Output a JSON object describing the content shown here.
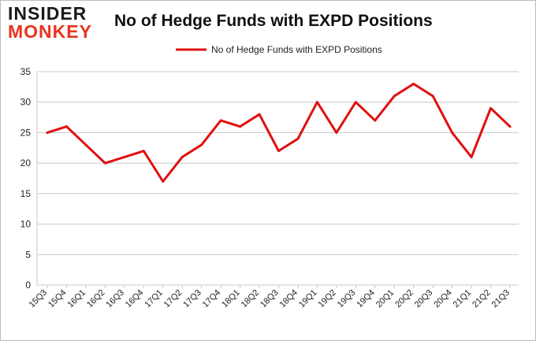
{
  "header": {
    "logo_line1": "INSIDER",
    "logo_line2": "MONKEY",
    "title": "No of Hedge Funds with EXPD Positions"
  },
  "colors": {
    "series": "#e01010",
    "grid": "#c8c8c8",
    "logo_red": "#e8341c"
  },
  "chart_data": {
    "type": "line",
    "title": "No of Hedge Funds with EXPD Positions",
    "xlabel": "",
    "ylabel": "",
    "ylim": [
      0,
      35
    ],
    "yticks": [
      0,
      5,
      10,
      15,
      20,
      25,
      30,
      35
    ],
    "grid": true,
    "legend": "top-center",
    "categories": [
      "15Q3",
      "15Q4",
      "16Q1",
      "16Q2",
      "16Q3",
      "16Q4",
      "17Q1",
      "17Q2",
      "17Q3",
      "17Q4",
      "18Q1",
      "18Q2",
      "18Q3",
      "18Q4",
      "19Q1",
      "19Q2",
      "19Q3",
      "19Q4",
      "20Q1",
      "20Q2",
      "20Q3",
      "20Q4",
      "21Q1",
      "21Q2",
      "21Q3"
    ],
    "series": [
      {
        "name": "No of Hedge Funds with EXPD Positions",
        "values": [
          25,
          26,
          23,
          20,
          21,
          22,
          17,
          21,
          23,
          27,
          26,
          28,
          22,
          24,
          30,
          25,
          30,
          27,
          31,
          33,
          31,
          25,
          21,
          29,
          26
        ]
      }
    ]
  }
}
